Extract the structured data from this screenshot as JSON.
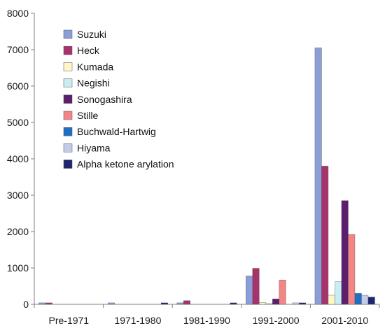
{
  "chart_data": {
    "type": "bar",
    "title": "",
    "xlabel": "",
    "ylabel": "",
    "ylim": [
      0,
      8000
    ],
    "yticks": [
      0,
      1000,
      2000,
      3000,
      4000,
      5000,
      6000,
      7000,
      8000
    ],
    "grid": false,
    "legend": "top-left",
    "categories": [
      "Pre-1971",
      "1971-1980",
      "1981-1990",
      "1991-2000",
      "2001-2010"
    ],
    "series": [
      {
        "name": "Suzuki",
        "color": "#8c9ed8",
        "values": [
          40,
          40,
          40,
          780,
          7050
        ]
      },
      {
        "name": "Heck",
        "color": "#a8336c",
        "values": [
          40,
          0,
          100,
          990,
          3800
        ]
      },
      {
        "name": "Kumada",
        "color": "#fff6c6",
        "values": [
          0,
          0,
          0,
          50,
          250
        ]
      },
      {
        "name": "Negishi",
        "color": "#c8eef3",
        "values": [
          0,
          0,
          0,
          20,
          620
        ]
      },
      {
        "name": "Sonogashira",
        "color": "#5b1f6e",
        "values": [
          0,
          0,
          0,
          150,
          2850
        ]
      },
      {
        "name": "Stille",
        "color": "#f48585",
        "values": [
          0,
          0,
          0,
          670,
          1920
        ]
      },
      {
        "name": "Buchwald-Hartwig",
        "color": "#1f6fc4",
        "values": [
          0,
          0,
          0,
          0,
          300
        ]
      },
      {
        "name": "Hiyama",
        "color": "#c3cbea",
        "values": [
          0,
          0,
          0,
          40,
          250
        ]
      },
      {
        "name": "Alpha ketone arylation",
        "color": "#1f2670",
        "values": [
          0,
          40,
          40,
          40,
          200
        ]
      }
    ]
  }
}
